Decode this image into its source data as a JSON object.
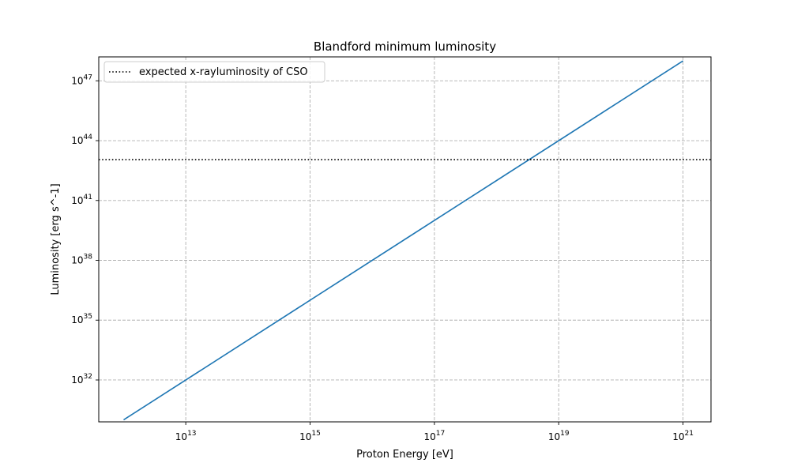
{
  "chart_data": {
    "type": "line",
    "title": "Blandford minimum luminosity",
    "xlabel": "Proton Energy [eV]",
    "ylabel": "Luminosity [erg s^-1]",
    "xscale": "log",
    "yscale": "log",
    "xlim_exp": [
      11.6,
      21.45
    ],
    "ylim_exp": [
      29.9,
      48.2
    ],
    "x_ticks": [
      {
        "exp": 13,
        "base": "10",
        "sup": "13"
      },
      {
        "exp": 15,
        "base": "10",
        "sup": "15"
      },
      {
        "exp": 17,
        "base": "10",
        "sup": "17"
      },
      {
        "exp": 19,
        "base": "10",
        "sup": "19"
      },
      {
        "exp": 21,
        "base": "10",
        "sup": "21"
      }
    ],
    "y_ticks": [
      {
        "exp": 32,
        "base": "10",
        "sup": "32"
      },
      {
        "exp": 35,
        "base": "10",
        "sup": "35"
      },
      {
        "exp": 38,
        "base": "10",
        "sup": "38"
      },
      {
        "exp": 41,
        "base": "10",
        "sup": "41"
      },
      {
        "exp": 44,
        "base": "10",
        "sup": "44"
      },
      {
        "exp": 47,
        "base": "10",
        "sup": "47"
      }
    ],
    "grid": true,
    "grid_style": "dashed",
    "legend_position": "upper-left",
    "series": [
      {
        "kind": "line",
        "color": "#1f77b4",
        "x_exp": [
          12,
          21
        ],
        "y_exp": [
          30.0,
          48.0
        ]
      },
      {
        "kind": "hline",
        "name": "expected x-rayluminosity of CSO",
        "color": "#000000",
        "style": "dotted",
        "y_exp": 43.05
      }
    ]
  }
}
